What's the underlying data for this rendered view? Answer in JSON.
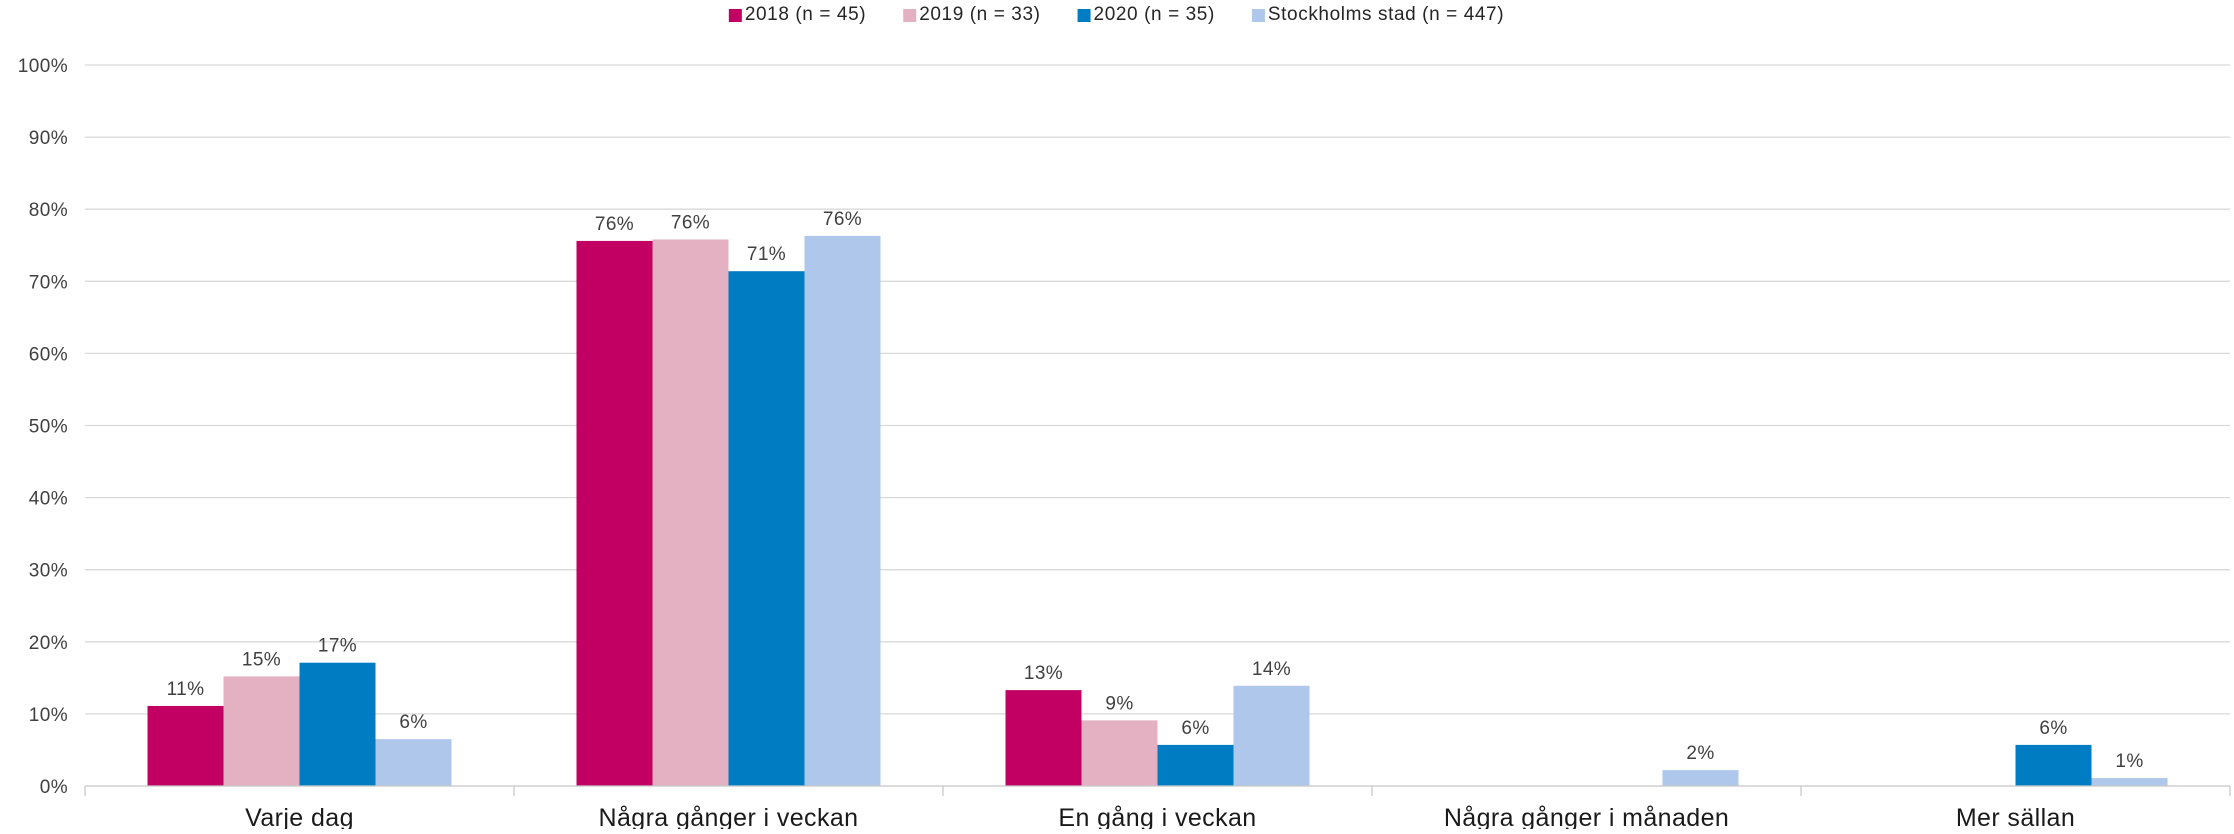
{
  "chart_data": {
    "type": "bar",
    "title": "",
    "xlabel": "",
    "ylabel": "",
    "ylim": [
      0,
      100
    ],
    "yticks": [
      0,
      10,
      20,
      30,
      40,
      50,
      60,
      70,
      80,
      90,
      100
    ],
    "ytick_labels": [
      "0%",
      "10%",
      "20%",
      "30%",
      "40%",
      "50%",
      "60%",
      "70%",
      "80%",
      "90%",
      "100%"
    ],
    "grid": true,
    "legend_position": "top-center",
    "categories": [
      "Varje dag",
      "Några gånger i veckan",
      "En gång i veckan",
      "Några gånger i månaden",
      "Mer sällan"
    ],
    "series": [
      {
        "name": "2018  (n = 45)",
        "color": "#c20063",
        "values": [
          11.1,
          75.6,
          13.3,
          null,
          null
        ],
        "labels": [
          "11%",
          "76%",
          "13%",
          "",
          ""
        ]
      },
      {
        "name": "2019  (n = 33)",
        "color": "#e4b1c2",
        "values": [
          15.2,
          75.8,
          9.1,
          null,
          null
        ],
        "labels": [
          "15%",
          "76%",
          "9%",
          "",
          ""
        ]
      },
      {
        "name": "2020  (n = 35)",
        "color": "#007cc3",
        "values": [
          17.1,
          71.4,
          5.7,
          null,
          5.7
        ],
        "labels": [
          "17%",
          "71%",
          "6%",
          "",
          "6%"
        ]
      },
      {
        "name": "Stockholms stad  (n = 447)",
        "color": "#aec7ea",
        "values": [
          6.5,
          76.3,
          13.9,
          2.2,
          1.1
        ],
        "labels": [
          "6%",
          "76%",
          "14%",
          "2%",
          "1%"
        ]
      }
    ]
  }
}
